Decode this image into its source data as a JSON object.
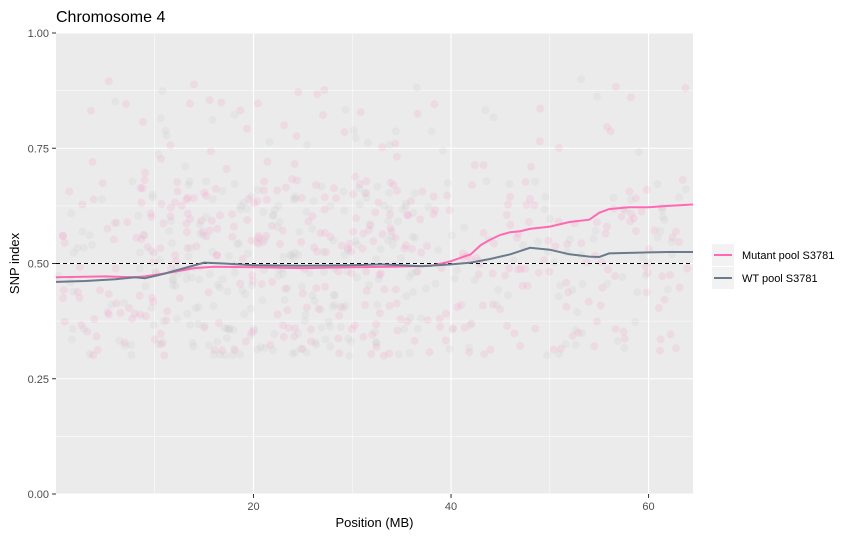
{
  "chart_data": {
    "type": "line",
    "title": "Chromosome 4",
    "xlabel": "Position (MB)",
    "ylabel": "SNP index",
    "xlim": [
      0,
      64.5
    ],
    "ylim": [
      0,
      1
    ],
    "x_ticks": [
      20,
      40,
      60
    ],
    "x_tick_labels": [
      "20",
      "40",
      "60"
    ],
    "y_ticks": [
      0,
      0.25,
      0.5,
      0.75,
      1
    ],
    "y_tick_labels": [
      "0.00",
      "0.25",
      "0.50",
      "0.75",
      "1.00"
    ],
    "grid": true,
    "legend_position": "right",
    "reference_line": {
      "y": 0.5,
      "style": "dashed",
      "color": "#000000"
    },
    "panel_background": "#ebebeb",
    "series": [
      {
        "name": "Mutant pool S3781",
        "color": "#ff69b4",
        "x": [
          0,
          5,
          8,
          9,
          10,
          12,
          14,
          16,
          20,
          25,
          30,
          34,
          36,
          38,
          40,
          42,
          43,
          44,
          45,
          46,
          47,
          48,
          50,
          52,
          54,
          55,
          56,
          58,
          60,
          62,
          64.5
        ],
        "y": [
          0.47,
          0.472,
          0.47,
          0.472,
          0.475,
          0.482,
          0.49,
          0.493,
          0.492,
          0.49,
          0.492,
          0.493,
          0.494,
          0.495,
          0.505,
          0.52,
          0.54,
          0.552,
          0.562,
          0.568,
          0.57,
          0.575,
          0.58,
          0.59,
          0.595,
          0.61,
          0.618,
          0.622,
          0.622,
          0.625,
          0.628
        ]
      },
      {
        "name": "WT pool S3781",
        "color": "#6b7b8c",
        "x": [
          0,
          3,
          6,
          8,
          9,
          11,
          13,
          15,
          17,
          20,
          25,
          30,
          33,
          35,
          37,
          40,
          42,
          44,
          46,
          48,
          50,
          52,
          54,
          55,
          56,
          58,
          60,
          62,
          64.5
        ],
        "y": [
          0.46,
          0.462,
          0.466,
          0.47,
          0.468,
          0.478,
          0.49,
          0.502,
          0.5,
          0.496,
          0.495,
          0.496,
          0.498,
          0.496,
          0.494,
          0.498,
          0.502,
          0.51,
          0.52,
          0.534,
          0.53,
          0.52,
          0.515,
          0.514,
          0.522,
          0.523,
          0.524,
          0.525,
          0.525
        ]
      }
    ],
    "scatter_points": {
      "colors": [
        "#ff69b4",
        "#b8b8b8"
      ],
      "opacity": 0.12,
      "dense_band": [
        0.3,
        0.68
      ],
      "full_band": [
        0.3,
        0.9
      ]
    }
  }
}
